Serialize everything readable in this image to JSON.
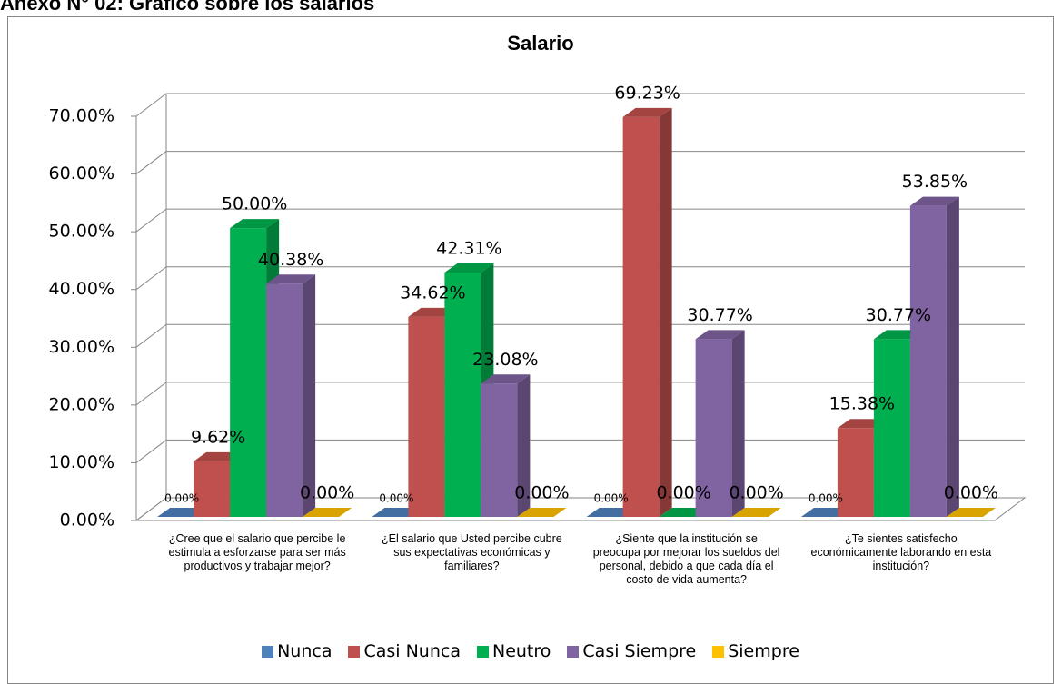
{
  "page_title": "Anexo N° 02: Gráfico sobre los salarios",
  "chart_data": {
    "type": "bar3d",
    "title": "Salario",
    "categories": [
      "¿Cree que el salario que percibe le estimula a esforzarse para ser más productivos y trabajar mejor?",
      "¿El salario que Usted percibe cubre sus expectativas económicas y familiares?",
      "¿Siente que la institución se preocupa por mejorar los sueldos del personal, debido a que cada día el costo de vida aumenta?",
      "¿Te sientes satisfecho económicamente laborando en esta institución?"
    ],
    "series": [
      {
        "name": "Nunca",
        "color": "#4f81bd",
        "values": [
          0,
          0,
          0,
          0
        ],
        "value_labels": [
          "0.00%",
          "0.00%",
          "0.00%",
          "0.00%"
        ]
      },
      {
        "name": "Casi Nunca",
        "color": "#c0504d",
        "values": [
          9.62,
          34.62,
          69.23,
          15.38
        ],
        "value_labels": [
          "9.62%",
          "34.62%",
          "69.23%",
          "15.38%"
        ]
      },
      {
        "name": "Neutro",
        "color": "#00b050",
        "values": [
          50,
          42.31,
          0,
          30.77
        ],
        "value_labels": [
          "50.00%",
          "42.31%",
          "0.00%",
          "30.77%"
        ]
      },
      {
        "name": "Casi Siempre",
        "color": "#8064a2",
        "values": [
          40.38,
          23.08,
          30.77,
          53.85
        ],
        "value_labels": [
          "40.38%",
          "23.08%",
          "30.77%",
          "53.85%"
        ]
      },
      {
        "name": "Siempre",
        "color": "#ffc000",
        "values": [
          0,
          0,
          0,
          0
        ],
        "value_labels": [
          "0.00%",
          "0.00%",
          "0.00%",
          "0.00%"
        ]
      }
    ],
    "ylim": [
      0,
      70
    ],
    "yticks": [
      {
        "value": 0,
        "label": "0.00%"
      },
      {
        "value": 10,
        "label": "10.00%"
      },
      {
        "value": 20,
        "label": "20.00%"
      },
      {
        "value": 30,
        "label": "30.00%"
      },
      {
        "value": 40,
        "label": "40.00%"
      },
      {
        "value": 50,
        "label": "50.00%"
      },
      {
        "value": 60,
        "label": "60.00%"
      },
      {
        "value": 70,
        "label": "70.00%"
      }
    ],
    "grid": true,
    "legend": "bottom"
  }
}
